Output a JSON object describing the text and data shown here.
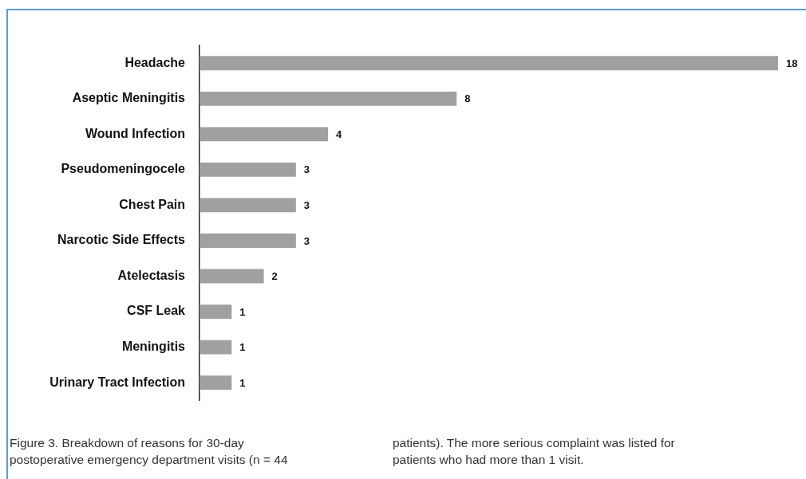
{
  "chart_data": {
    "type": "bar",
    "orientation": "horizontal",
    "categories": [
      "Headache",
      "Aseptic Meningitis",
      "Wound Infection",
      "Pseudomeningocele",
      "Chest Pain",
      "Narcotic Side Effects",
      "Atelectasis",
      "CSF Leak",
      "Meningitis",
      "Urinary Tract Infection"
    ],
    "values": [
      18,
      8,
      4,
      3,
      3,
      3,
      2,
      1,
      1,
      1
    ],
    "color": "#a0a0a0",
    "data_labels": true,
    "legend": false,
    "tick_labels": "y",
    "annotations": [
      "Figure 3. Breakdown of reasons for 30-day postoperative emergency department visits (n = 44 patients). The more serious complaint was listed for patients who had more than 1 visit."
    ]
  }
}
